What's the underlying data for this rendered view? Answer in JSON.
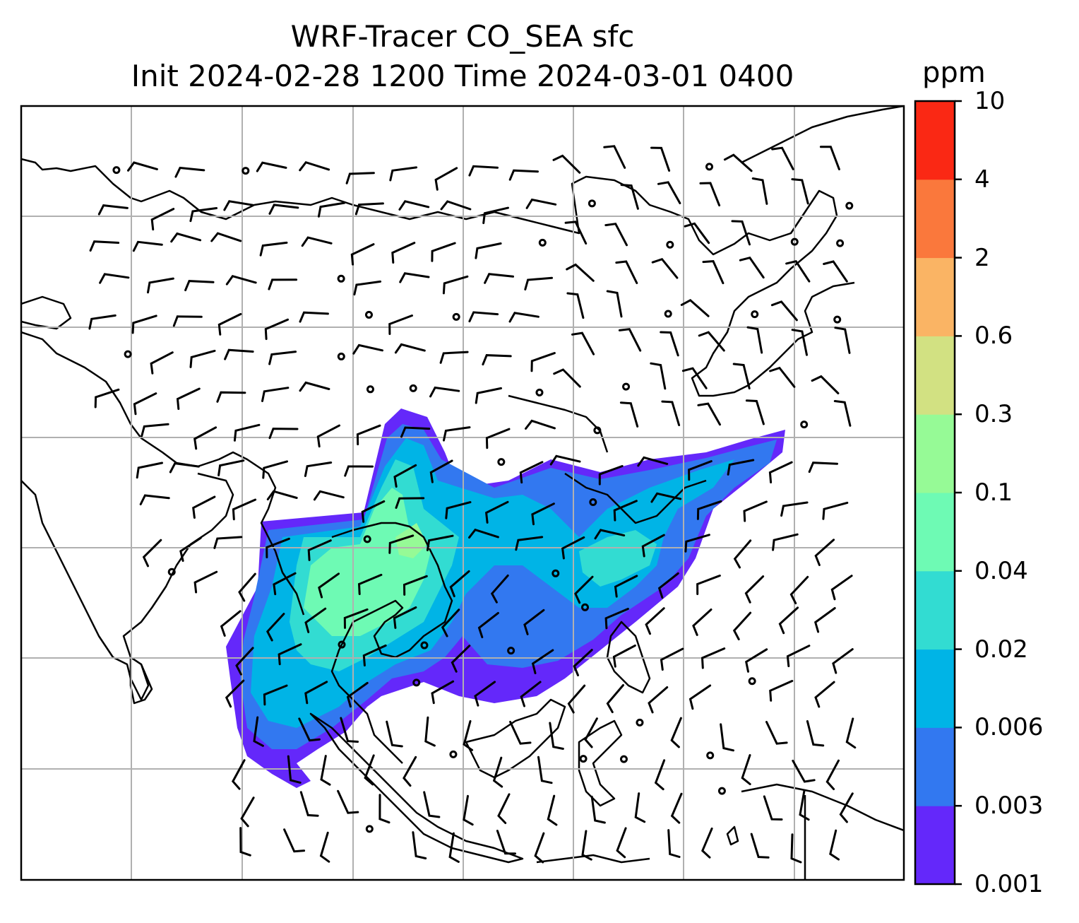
{
  "title_line1": "WRF-Tracer CO_SEA sfc",
  "title_line2": "Init 2024-02-28 1200 Time 2024-03-01 0400",
  "colorbar": {
    "unit": "ppm",
    "levels": [
      "0.001",
      "0.003",
      "0.006",
      "0.02",
      "0.04",
      "0.1",
      "0.3",
      "0.6",
      "2",
      "4",
      "10"
    ],
    "colors": [
      "#6428fa",
      "#3278f0",
      "#00b4e6",
      "#32dcd2",
      "#6efab4",
      "#96fa96",
      "#d2e182",
      "#fab464",
      "#fa783c",
      "#fa2814"
    ]
  },
  "map": {
    "field": "CO_SEA tracer concentration (surface)",
    "overlay": "wind barbs",
    "region": "South and East Asia",
    "gridlines": true
  }
}
